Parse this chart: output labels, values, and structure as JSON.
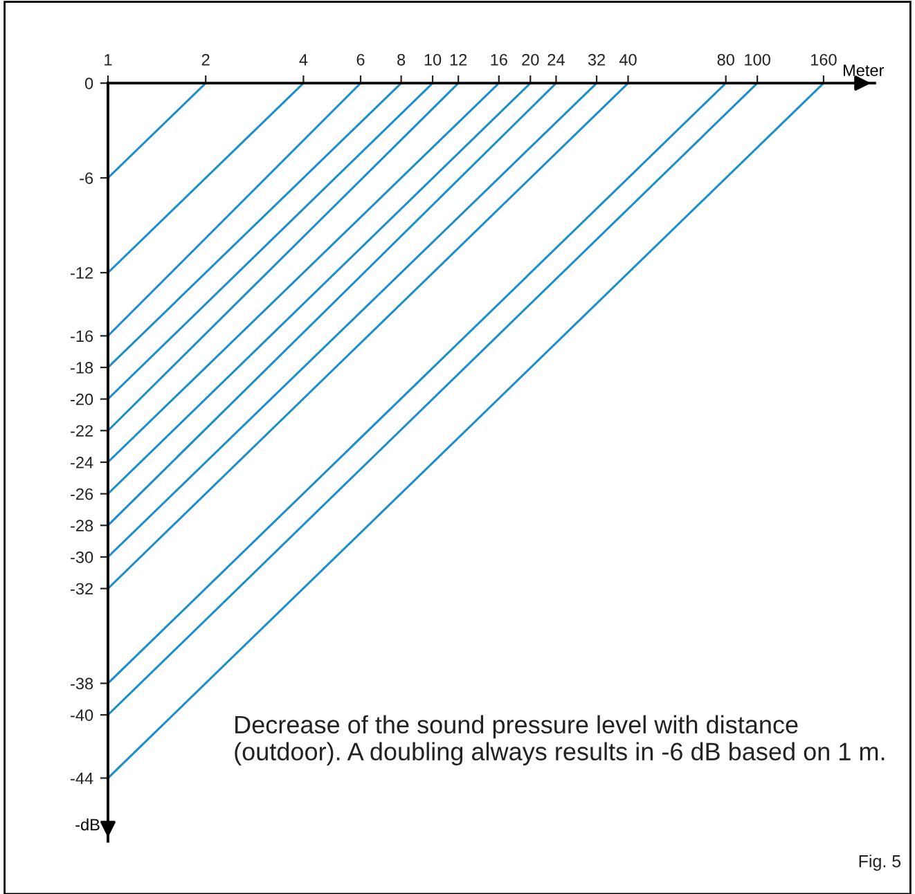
{
  "chart_data": {
    "type": "line",
    "xlabel": "Meter",
    "ylabel": "-dB",
    "log": "x",
    "xlim": [
      1,
      230
    ],
    "ylim": [
      -48,
      0
    ],
    "xticks": [
      1,
      2,
      4,
      6,
      8,
      10,
      12,
      16,
      20,
      24,
      32,
      40,
      80,
      100,
      160
    ],
    "yticks": [
      0,
      -6,
      -12,
      -16,
      -18,
      -20,
      -22,
      -24,
      -26,
      -28,
      -30,
      -32,
      -38,
      -40,
      -44
    ],
    "grid": false,
    "legend": false,
    "marker": "none",
    "line_style": "solid",
    "series": [
      {
        "color": "#1b8fcb",
        "x": [
          1,
          2
        ],
        "values": [
          -6,
          0
        ]
      },
      {
        "color": "#1b8fcb",
        "x": [
          1,
          4
        ],
        "values": [
          -12,
          0
        ]
      },
      {
        "color": "#1b8fcb",
        "x": [
          1,
          6
        ],
        "values": [
          -16,
          0
        ]
      },
      {
        "color": "#1b8fcb",
        "x": [
          1,
          8
        ],
        "values": [
          -18,
          0
        ]
      },
      {
        "color": "#1b8fcb",
        "x": [
          1,
          10
        ],
        "values": [
          -20,
          0
        ]
      },
      {
        "color": "#1b8fcb",
        "x": [
          1,
          12
        ],
        "values": [
          -22,
          0
        ]
      },
      {
        "color": "#1b8fcb",
        "x": [
          1,
          16
        ],
        "values": [
          -24,
          0
        ]
      },
      {
        "color": "#1b8fcb",
        "x": [
          1,
          20
        ],
        "values": [
          -26,
          0
        ]
      },
      {
        "color": "#1b8fcb",
        "x": [
          1,
          24
        ],
        "values": [
          -28,
          0
        ]
      },
      {
        "color": "#1b8fcb",
        "x": [
          1,
          32
        ],
        "values": [
          -30,
          0
        ]
      },
      {
        "color": "#1b8fcb",
        "x": [
          1,
          40
        ],
        "values": [
          -32,
          0
        ]
      },
      {
        "color": "#1b8fcb",
        "x": [
          1,
          80
        ],
        "values": [
          -38,
          0
        ]
      },
      {
        "color": "#1b8fcb",
        "x": [
          1,
          100
        ],
        "values": [
          -40,
          0
        ]
      },
      {
        "color": "#1b8fcb",
        "x": [
          1,
          160
        ],
        "values": [
          -44,
          0
        ]
      }
    ],
    "annotations": [
      "Decrease of the sound pressure level with distance (outdoor). A doubling always results in -6 dB based on 1 m.",
      "Fig. 5"
    ]
  }
}
